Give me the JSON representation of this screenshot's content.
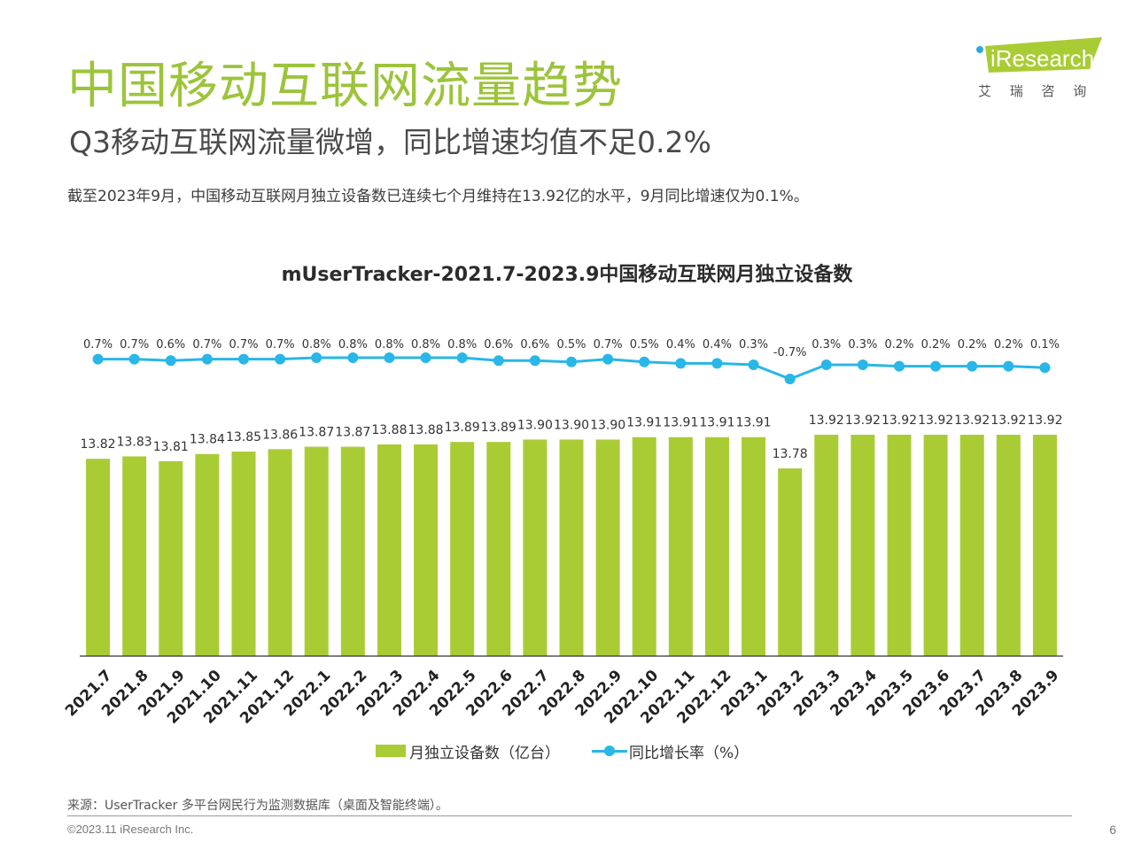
{
  "slide": {
    "title": "中国移动互联网流量趋势",
    "subtitle": "Q3移动互联网流量微增，同比增速均值不足0.2%",
    "summary": "截至2023年9月，中国移动互联网月独立设备数已连续七个月维持在13.92亿的水平，9月同比增速仅为0.1%。",
    "source": "来源：UserTracker 多平台网民行为监测数据库（桌面及智能终端）。",
    "copyright": "©2023.11 iResearch Inc.",
    "page_number": "6"
  },
  "logo": {
    "brand": "iResearch",
    "tagline": "艾 瑞 咨 询",
    "color": "#a9cc35"
  },
  "colors": {
    "title": "#9cc43a",
    "bar": "#a9cc35",
    "line": "#28b7e6"
  },
  "chart_data": {
    "type": "bar",
    "title": "mUserTracker-2021.7-2023.9中国移动互联网月独立设备数",
    "categories": [
      "2021.7",
      "2021.8",
      "2021.9",
      "2021.10",
      "2021.11",
      "2021.12",
      "2022.1",
      "2022.2",
      "2022.3",
      "2022.4",
      "2022.5",
      "2022.6",
      "2022.7",
      "2022.8",
      "2022.9",
      "2022.10",
      "2022.11",
      "2022.12",
      "2023.1",
      "2023.2",
      "2023.3",
      "2023.4",
      "2023.5",
      "2023.6",
      "2023.7",
      "2023.8",
      "2023.9"
    ],
    "series": [
      {
        "name": "月独立设备数（亿台）",
        "type": "bar",
        "values": [
          13.82,
          13.83,
          13.81,
          13.84,
          13.85,
          13.86,
          13.87,
          13.87,
          13.88,
          13.88,
          13.89,
          13.89,
          13.9,
          13.9,
          13.9,
          13.91,
          13.91,
          13.91,
          13.91,
          13.78,
          13.92,
          13.92,
          13.92,
          13.92,
          13.92,
          13.92,
          13.92
        ],
        "value_labels": [
          "13.82",
          "13.83",
          "13.81",
          "13.84",
          "13.85",
          "13.86",
          "13.87",
          "13.87",
          "13.88",
          "13.88",
          "13.89",
          "13.89",
          "13.90",
          "13.90",
          "13.90",
          "13.91",
          "13.91",
          "13.91",
          "13.91",
          "13.78",
          "13.92",
          "13.92",
          "13.92",
          "13.92",
          "13.92",
          "13.92",
          "13.92"
        ]
      },
      {
        "name": "同比增长率（%）",
        "type": "line",
        "values": [
          0.7,
          0.7,
          0.6,
          0.7,
          0.7,
          0.7,
          0.8,
          0.8,
          0.8,
          0.8,
          0.8,
          0.6,
          0.6,
          0.5,
          0.7,
          0.5,
          0.4,
          0.4,
          0.3,
          -0.7,
          0.3,
          0.3,
          0.2,
          0.2,
          0.2,
          0.2,
          0.1
        ],
        "value_labels": [
          "0.7%",
          "0.7%",
          "0.6%",
          "0.7%",
          "0.7%",
          "0.7%",
          "0.8%",
          "0.8%",
          "0.8%",
          "0.8%",
          "0.8%",
          "0.6%",
          "0.6%",
          "0.5%",
          "0.7%",
          "0.5%",
          "0.4%",
          "0.4%",
          "0.3%",
          "-0.7%",
          "0.3%",
          "0.3%",
          "0.2%",
          "0.2%",
          "0.2%",
          "0.2%",
          "0.1%"
        ]
      }
    ],
    "legend": "bottom",
    "grid": false
  }
}
